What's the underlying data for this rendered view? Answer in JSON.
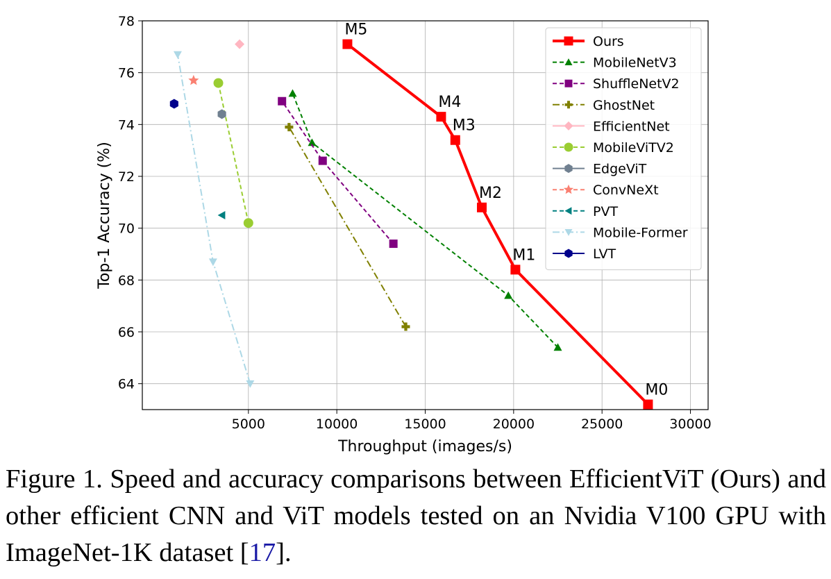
{
  "chart_data": {
    "type": "line",
    "xlabel": "Throughput (images/s)",
    "ylabel": "Top-1 Accuracy (%)",
    "xlim": [
      -1000,
      31000
    ],
    "ylim": [
      63,
      78
    ],
    "xticks": [
      5000,
      10000,
      15000,
      20000,
      25000,
      30000
    ],
    "yticks": [
      64,
      66,
      68,
      70,
      72,
      74,
      76,
      78
    ],
    "grid": true,
    "legend_position": "top-right",
    "series": [
      {
        "name": "Ours",
        "color": "#ff0000",
        "marker": "square",
        "line": "solid",
        "points": [
          [
            27600,
            63.2
          ],
          [
            20100,
            68.4
          ],
          [
            18200,
            70.8
          ],
          [
            16700,
            73.4
          ],
          [
            15900,
            74.3
          ],
          [
            10600,
            77.1
          ]
        ],
        "labels": [
          "M0",
          "M1",
          "M2",
          "M3",
          "M4",
          "M5"
        ]
      },
      {
        "name": "MobileNetV3",
        "color": "#008000",
        "marker": "triangle-up",
        "line": "dashed",
        "points": [
          [
            22500,
            65.4
          ],
          [
            19700,
            67.4
          ],
          [
            8600,
            73.3
          ],
          [
            7500,
            75.2
          ]
        ]
      },
      {
        "name": "ShuffleNetV2",
        "color": "#800080",
        "marker": "square",
        "line": "dashed",
        "points": [
          [
            13200,
            69.4
          ],
          [
            9200,
            72.6
          ],
          [
            6900,
            74.9
          ]
        ]
      },
      {
        "name": "GhostNet",
        "color": "#808000",
        "marker": "plus",
        "line": "dashdot",
        "points": [
          [
            13900,
            66.2
          ],
          [
            7300,
            73.9
          ]
        ]
      },
      {
        "name": "EfficientNet",
        "color": "#ffb6c1",
        "marker": "diamond",
        "line": "solid",
        "points": [
          [
            4500,
            77.1
          ]
        ]
      },
      {
        "name": "MobileViTV2",
        "color": "#9acd32",
        "marker": "circle",
        "line": "dashed",
        "points": [
          [
            5000,
            70.2
          ],
          [
            3300,
            75.6
          ]
        ]
      },
      {
        "name": "EdgeViT",
        "color": "#708090",
        "marker": "hexagon",
        "line": "solid",
        "points": [
          [
            3500,
            74.4
          ]
        ]
      },
      {
        "name": "ConvNeXt",
        "color": "#fa8072",
        "marker": "star",
        "line": "dashed",
        "points": [
          [
            1900,
            75.7
          ]
        ]
      },
      {
        "name": "PVT",
        "color": "#008080",
        "marker": "triangle-left",
        "line": "dashed",
        "points": [
          [
            3500,
            70.5
          ]
        ]
      },
      {
        "name": "Mobile-Former",
        "color": "#add8e6",
        "marker": "triangle-down",
        "line": "dashdot",
        "points": [
          [
            5100,
            64.0
          ],
          [
            3000,
            68.7
          ],
          [
            1000,
            76.7
          ]
        ]
      },
      {
        "name": "LVT",
        "color": "#00008b",
        "marker": "hexagon",
        "line": "solid",
        "points": [
          [
            800,
            74.8
          ]
        ]
      }
    ]
  },
  "caption": {
    "text": "Figure 1. Speed and accuracy comparisons between EfficientViT (Ours) and other efficient CNN and ViT models tested on an Nvidia V100 GPU with ImageNet-1K dataset [",
    "ref": "17",
    "tail": "]."
  }
}
